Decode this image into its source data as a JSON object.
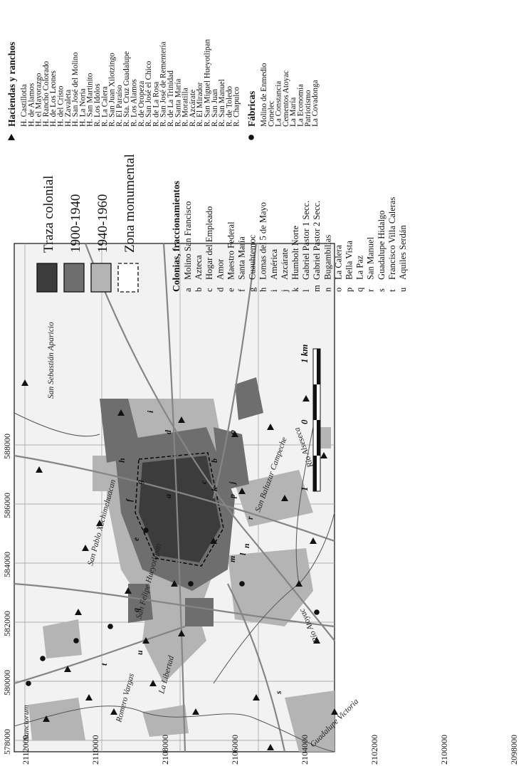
{
  "map": {
    "x_ticks": [
      "578000",
      "580000",
      "582000",
      "584000",
      "586000",
      "588000"
    ],
    "y_ticks": [
      "2112000",
      "2110000",
      "2108000",
      "2106000",
      "2104000",
      "2102000",
      "2100000",
      "2098000"
    ],
    "places": [
      {
        "id": "sanctorum",
        "label": "Sanctorum"
      },
      {
        "id": "romero-vargas",
        "label": "Romero Vargas"
      },
      {
        "id": "la-libertad",
        "label": "La Libertad"
      },
      {
        "id": "san-felipe",
        "label": "San Felipe Hueyotlipan"
      },
      {
        "id": "san-pablo",
        "label": "San Pablo Xochimehuacan"
      },
      {
        "id": "san-sebastian",
        "label": "San Sebastián Aparicio"
      },
      {
        "id": "san-baltazar",
        "label": "San Baltazar Campeche"
      },
      {
        "id": "guadalupe-victoria",
        "label": "Guadalupe Victoria"
      },
      {
        "id": "rio-atoyac",
        "label": "Río Atoyac"
      },
      {
        "id": "rio-alseseca",
        "label": "Río Alseseca"
      }
    ],
    "colonia_letters": [
      "a",
      "b",
      "c",
      "d",
      "e",
      "f",
      "g",
      "h",
      "i",
      "j",
      "k",
      "l",
      "m",
      "n",
      "o",
      "p",
      "q",
      "r",
      "s",
      "t",
      "u"
    ],
    "scale": {
      "start": "1",
      "mid": "0",
      "end": "1 km"
    }
  },
  "legend": {
    "periods": [
      {
        "label": "Traza colonial",
        "color": "#3c3c3c"
      },
      {
        "label": "1900-1940",
        "color": "#6e6e6e"
      },
      {
        "label": "1940-1960",
        "color": "#b4b4b4"
      },
      {
        "label": "Zona monumental",
        "color": "none"
      }
    ],
    "colonias_title": "Colonias, fraccionamientos",
    "colonias": [
      {
        "letter": "a",
        "name": "Molino San Francisco"
      },
      {
        "letter": "b",
        "name": "Azteca"
      },
      {
        "letter": "c",
        "name": "Hogar del Empleado"
      },
      {
        "letter": "d",
        "name": "Amor"
      },
      {
        "letter": "e",
        "name": "Maestro Federal"
      },
      {
        "letter": "f",
        "name": "Santa María"
      },
      {
        "letter": "g",
        "name": "Cuauhtemoc"
      },
      {
        "letter": "h",
        "name": "Lomas del 5 de Mayo"
      },
      {
        "letter": "i",
        "name": "América"
      },
      {
        "letter": "j",
        "name": "Azcárate"
      },
      {
        "letter": "k",
        "name": "Humbolt Norte"
      },
      {
        "letter": "l",
        "name": "Gabriel Pastor 1 Secc."
      },
      {
        "letter": "m",
        "name": "Gabriel Pastor 2 Secc."
      },
      {
        "letter": "n",
        "name": "Bugambilias"
      },
      {
        "letter": "o",
        "name": "La Calera"
      },
      {
        "letter": "p",
        "name": "Bella Vista"
      },
      {
        "letter": "q",
        "name": "La Paz"
      },
      {
        "letter": "r",
        "name": "San Manuel"
      },
      {
        "letter": "s",
        "name": "Guadalupe Hidalgo"
      },
      {
        "letter": "t",
        "name": "Francisco Villa Caleras"
      },
      {
        "letter": "u",
        "name": "Aquiles Serdán"
      }
    ],
    "haciendas_title": "Haciendas y ranchos",
    "haciendas": [
      "H. Castillotla",
      "H. de Alamos",
      "H. el Mayorazgo",
      "H. Rancho Colorado",
      "H. de Los Leones",
      "H. del Cristo",
      "H. Zavaleta",
      "H. San José del Molino",
      "H. La Noria",
      "H. San Martinito",
      "R. Los Idolos",
      "R. La Calera",
      "R. San Juan Xilotzingo",
      "R. El Paraíso",
      "R. Sta. Cruz Guadalupe",
      "R. Los Alamos",
      "R. de Oropeza",
      "R. San José el Chico",
      "R. de La Rosa",
      "R. San José de Rementería",
      "R. de La Trinidad",
      "R. Santa María",
      "R. Moratilla",
      "R. Azcárate",
      "R. El Mirador",
      "R. San Miguel Hueyotlipan",
      "R. San Juan",
      "R. San Manuel",
      "R. de Toledo",
      "R. Chapulco"
    ],
    "fabricas_title": "Fábricas",
    "fabricas": [
      "Molino de Enmedio",
      "Conelec",
      "La Constancia",
      "Cementos Atoyac",
      "La María",
      "La Economía",
      "Patriotismo",
      "La Covadonga"
    ]
  }
}
